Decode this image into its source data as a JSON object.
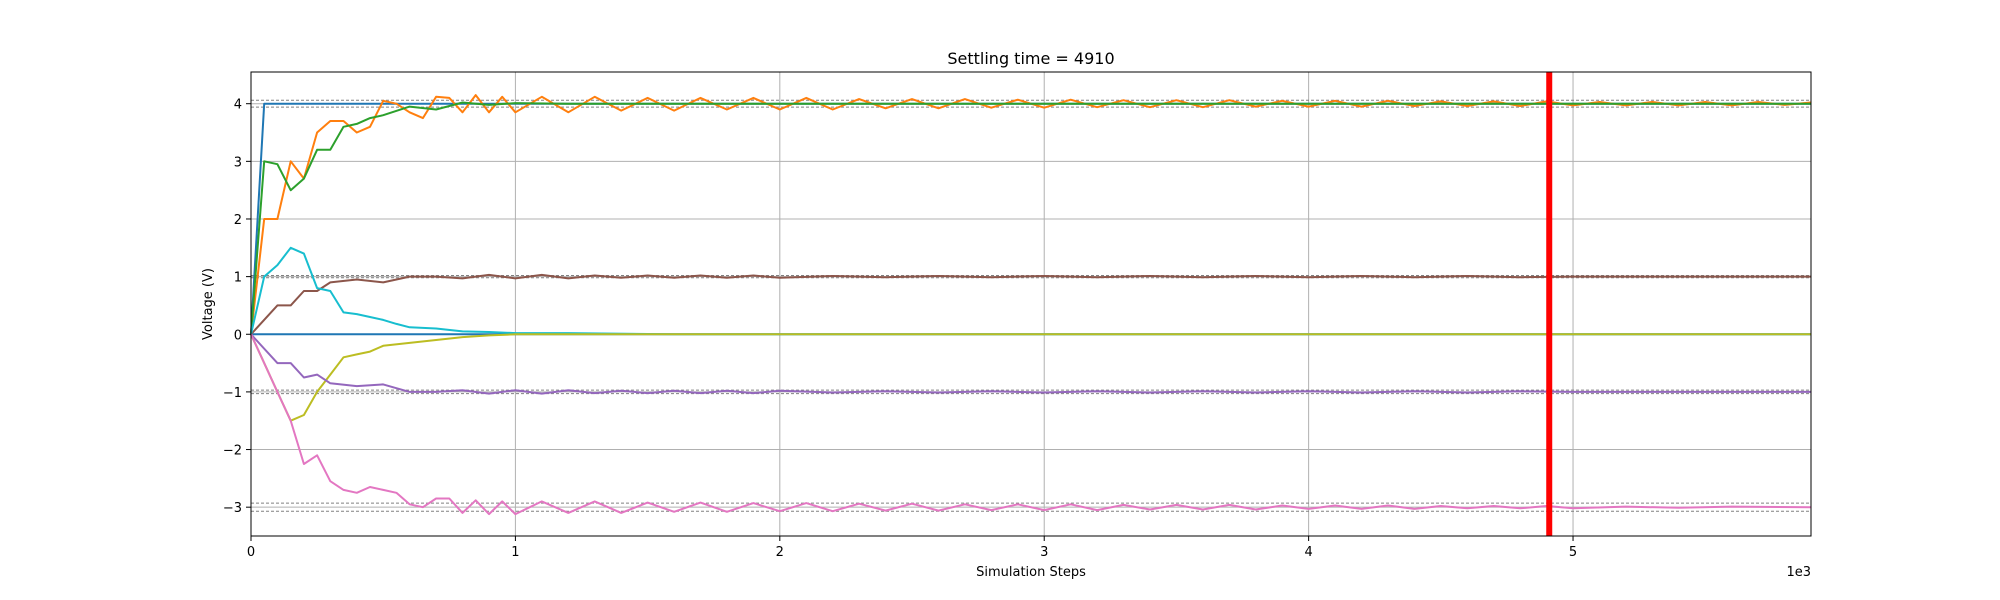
{
  "chart_data": {
    "type": "line",
    "title": "Settling time = 4910",
    "xlabel": "Simulation Steps",
    "ylabel": "Voltage (V)",
    "x_offset_label": "1e3",
    "xlim": [
      0,
      5900
    ],
    "ylim": [
      -3.5,
      4.55
    ],
    "grid": true,
    "x_ticks": [
      0,
      1000,
      2000,
      3000,
      4000,
      5000
    ],
    "x_tick_labels": [
      "0",
      "1",
      "2",
      "3",
      "4",
      "5"
    ],
    "y_ticks": [
      -3,
      -2,
      -1,
      0,
      1,
      2,
      3,
      4
    ],
    "y_tick_labels": [
      "−3",
      "−2",
      "−1",
      "0",
      "1",
      "2",
      "3",
      "4"
    ],
    "settling_time": 4910,
    "settling_marker_color": "#ff0000",
    "tolerance_bands": [
      {
        "center": 4,
        "half_width": 0.06
      },
      {
        "center": 1,
        "half_width": 0.02
      },
      {
        "center": -1,
        "half_width": 0.03
      },
      {
        "center": -3,
        "half_width": 0.07
      }
    ],
    "series": [
      {
        "color": "#1f77b4",
        "points": [
          [
            0,
            0
          ],
          [
            50,
            4
          ],
          [
            5900,
            4
          ]
        ]
      },
      {
        "color": "#1f77b4",
        "points": [
          [
            0,
            0
          ],
          [
            5900,
            0
          ]
        ]
      },
      {
        "color": "#ff7f0e",
        "points": [
          [
            0,
            0
          ],
          [
            50,
            2
          ],
          [
            100,
            2
          ],
          [
            150,
            3
          ],
          [
            200,
            2.7
          ],
          [
            250,
            3.5
          ],
          [
            300,
            3.7
          ],
          [
            350,
            3.7
          ],
          [
            400,
            3.5
          ],
          [
            450,
            3.6
          ],
          [
            500,
            4.05
          ],
          [
            550,
            4.0
          ],
          [
            600,
            3.85
          ],
          [
            650,
            3.75
          ],
          [
            700,
            4.12
          ],
          [
            750,
            4.1
          ],
          [
            800,
            3.85
          ],
          [
            850,
            4.15
          ],
          [
            900,
            3.85
          ],
          [
            950,
            4.12
          ],
          [
            1000,
            3.85
          ],
          [
            1100,
            4.12
          ],
          [
            1200,
            3.85
          ],
          [
            1300,
            4.12
          ],
          [
            1400,
            3.88
          ],
          [
            1500,
            4.1
          ],
          [
            1600,
            3.88
          ],
          [
            1700,
            4.1
          ],
          [
            1800,
            3.9
          ],
          [
            1900,
            4.1
          ],
          [
            2000,
            3.9
          ],
          [
            2100,
            4.1
          ],
          [
            2200,
            3.9
          ],
          [
            2300,
            4.08
          ],
          [
            2400,
            3.92
          ],
          [
            2500,
            4.08
          ],
          [
            2600,
            3.92
          ],
          [
            2700,
            4.08
          ],
          [
            2800,
            3.93
          ],
          [
            2900,
            4.07
          ],
          [
            3000,
            3.93
          ],
          [
            3100,
            4.07
          ],
          [
            3200,
            3.94
          ],
          [
            3300,
            4.06
          ],
          [
            3400,
            3.94
          ],
          [
            3500,
            4.06
          ],
          [
            3600,
            3.94
          ],
          [
            3700,
            4.06
          ],
          [
            3800,
            3.95
          ],
          [
            3900,
            4.05
          ],
          [
            4000,
            3.95
          ],
          [
            4100,
            4.05
          ],
          [
            4200,
            3.95
          ],
          [
            4300,
            4.05
          ],
          [
            4400,
            3.96
          ],
          [
            4500,
            4.04
          ],
          [
            4600,
            3.96
          ],
          [
            4700,
            4.04
          ],
          [
            4800,
            3.96
          ],
          [
            4900,
            4.04
          ],
          [
            5000,
            3.97
          ],
          [
            5100,
            4.03
          ],
          [
            5200,
            3.97
          ],
          [
            5300,
            4.03
          ],
          [
            5400,
            3.97
          ],
          [
            5500,
            4.03
          ],
          [
            5600,
            3.97
          ],
          [
            5700,
            4.03
          ],
          [
            5800,
            3.98
          ],
          [
            5900,
            4.02
          ]
        ]
      },
      {
        "color": "#2ca02c",
        "points": [
          [
            0,
            0
          ],
          [
            50,
            3
          ],
          [
            100,
            2.95
          ],
          [
            150,
            2.5
          ],
          [
            200,
            2.7
          ],
          [
            250,
            3.2
          ],
          [
            300,
            3.2
          ],
          [
            350,
            3.6
          ],
          [
            400,
            3.65
          ],
          [
            450,
            3.75
          ],
          [
            500,
            3.8
          ],
          [
            600,
            3.95
          ],
          [
            700,
            3.9
          ],
          [
            800,
            4.02
          ],
          [
            900,
            3.98
          ],
          [
            1000,
            4.01
          ],
          [
            1200,
            4.0
          ],
          [
            5900,
            4.0
          ]
        ]
      },
      {
        "color": "#8c564b",
        "points": [
          [
            0,
            0
          ],
          [
            100,
            0.5
          ],
          [
            150,
            0.5
          ],
          [
            200,
            0.75
          ],
          [
            250,
            0.75
          ],
          [
            300,
            0.9
          ],
          [
            400,
            0.95
          ],
          [
            500,
            0.9
          ],
          [
            600,
            1.0
          ],
          [
            700,
            1.0
          ],
          [
            800,
            0.97
          ],
          [
            900,
            1.03
          ],
          [
            1000,
            0.97
          ],
          [
            1100,
            1.03
          ],
          [
            1200,
            0.97
          ],
          [
            1300,
            1.02
          ],
          [
            1400,
            0.98
          ],
          [
            1500,
            1.02
          ],
          [
            1600,
            0.98
          ],
          [
            1700,
            1.02
          ],
          [
            1800,
            0.98
          ],
          [
            1900,
            1.02
          ],
          [
            2000,
            0.98
          ],
          [
            2200,
            1.01
          ],
          [
            2400,
            0.99
          ],
          [
            2600,
            1.01
          ],
          [
            2800,
            0.99
          ],
          [
            3000,
            1.01
          ],
          [
            3200,
            0.99
          ],
          [
            3400,
            1.01
          ],
          [
            3600,
            0.99
          ],
          [
            3800,
            1.01
          ],
          [
            4000,
            0.99
          ],
          [
            4200,
            1.01
          ],
          [
            4400,
            0.99
          ],
          [
            4600,
            1.01
          ],
          [
            4800,
            0.99
          ],
          [
            5000,
            1.0
          ],
          [
            5900,
            1.0
          ]
        ]
      },
      {
        "color": "#17becf",
        "points": [
          [
            0,
            0
          ],
          [
            50,
            1
          ],
          [
            100,
            1.2
          ],
          [
            150,
            1.5
          ],
          [
            200,
            1.4
          ],
          [
            250,
            0.8
          ],
          [
            300,
            0.75
          ],
          [
            350,
            0.38
          ],
          [
            400,
            0.35
          ],
          [
            450,
            0.3
          ],
          [
            500,
            0.25
          ],
          [
            550,
            0.18
          ],
          [
            600,
            0.12
          ],
          [
            700,
            0.1
          ],
          [
            800,
            0.05
          ],
          [
            900,
            0.04
          ],
          [
            1000,
            0.02
          ],
          [
            1200,
            0.02
          ],
          [
            1600,
            0.0
          ],
          [
            5900,
            0.0
          ]
        ]
      },
      {
        "color": "#bcbd22",
        "points": [
          [
            0,
            0
          ],
          [
            50,
            -0.5
          ],
          [
            100,
            -1.0
          ],
          [
            150,
            -1.5
          ],
          [
            200,
            -1.4
          ],
          [
            250,
            -1.0
          ],
          [
            300,
            -0.7
          ],
          [
            350,
            -0.4
          ],
          [
            400,
            -0.35
          ],
          [
            450,
            -0.3
          ],
          [
            500,
            -0.2
          ],
          [
            600,
            -0.15
          ],
          [
            700,
            -0.1
          ],
          [
            800,
            -0.05
          ],
          [
            900,
            -0.02
          ],
          [
            1000,
            0.0
          ],
          [
            5900,
            0.0
          ]
        ]
      },
      {
        "color": "#9467bd",
        "points": [
          [
            0,
            0
          ],
          [
            100,
            -0.5
          ],
          [
            150,
            -0.5
          ],
          [
            200,
            -0.75
          ],
          [
            250,
            -0.7
          ],
          [
            300,
            -0.85
          ],
          [
            400,
            -0.9
          ],
          [
            500,
            -0.87
          ],
          [
            600,
            -1.0
          ],
          [
            700,
            -1.0
          ],
          [
            800,
            -0.97
          ],
          [
            900,
            -1.03
          ],
          [
            1000,
            -0.97
          ],
          [
            1100,
            -1.03
          ],
          [
            1200,
            -0.97
          ],
          [
            1300,
            -1.02
          ],
          [
            1400,
            -0.98
          ],
          [
            1500,
            -1.02
          ],
          [
            1600,
            -0.98
          ],
          [
            1700,
            -1.02
          ],
          [
            1800,
            -0.98
          ],
          [
            1900,
            -1.02
          ],
          [
            2000,
            -0.98
          ],
          [
            2200,
            -1.01
          ],
          [
            2400,
            -0.99
          ],
          [
            2600,
            -1.01
          ],
          [
            2800,
            -0.99
          ],
          [
            3000,
            -1.01
          ],
          [
            3200,
            -0.99
          ],
          [
            3400,
            -1.01
          ],
          [
            3600,
            -0.99
          ],
          [
            3800,
            -1.01
          ],
          [
            4000,
            -0.99
          ],
          [
            4200,
            -1.01
          ],
          [
            4400,
            -0.99
          ],
          [
            4600,
            -1.01
          ],
          [
            4800,
            -0.99
          ],
          [
            5000,
            -1.0
          ],
          [
            5900,
            -1.0
          ]
        ]
      },
      {
        "color": "#e377c2",
        "points": [
          [
            0,
            0
          ],
          [
            50,
            -0.5
          ],
          [
            100,
            -1.0
          ],
          [
            150,
            -1.5
          ],
          [
            200,
            -2.25
          ],
          [
            250,
            -2.1
          ],
          [
            300,
            -2.55
          ],
          [
            350,
            -2.7
          ],
          [
            400,
            -2.75
          ],
          [
            450,
            -2.65
          ],
          [
            500,
            -2.7
          ],
          [
            550,
            -2.75
          ],
          [
            600,
            -2.95
          ],
          [
            650,
            -3.0
          ],
          [
            700,
            -2.85
          ],
          [
            750,
            -2.85
          ],
          [
            800,
            -3.1
          ],
          [
            850,
            -2.88
          ],
          [
            900,
            -3.12
          ],
          [
            950,
            -2.9
          ],
          [
            1000,
            -3.12
          ],
          [
            1100,
            -2.9
          ],
          [
            1200,
            -3.1
          ],
          [
            1300,
            -2.9
          ],
          [
            1400,
            -3.1
          ],
          [
            1500,
            -2.92
          ],
          [
            1600,
            -3.08
          ],
          [
            1700,
            -2.92
          ],
          [
            1800,
            -3.08
          ],
          [
            1900,
            -2.93
          ],
          [
            2000,
            -3.07
          ],
          [
            2100,
            -2.93
          ],
          [
            2200,
            -3.07
          ],
          [
            2300,
            -2.94
          ],
          [
            2400,
            -3.06
          ],
          [
            2500,
            -2.94
          ],
          [
            2600,
            -3.06
          ],
          [
            2700,
            -2.95
          ],
          [
            2800,
            -3.05
          ],
          [
            2900,
            -2.95
          ],
          [
            3000,
            -3.05
          ],
          [
            3100,
            -2.95
          ],
          [
            3200,
            -3.05
          ],
          [
            3300,
            -2.96
          ],
          [
            3400,
            -3.04
          ],
          [
            3500,
            -2.96
          ],
          [
            3600,
            -3.04
          ],
          [
            3700,
            -2.96
          ],
          [
            3800,
            -3.04
          ],
          [
            3900,
            -2.97
          ],
          [
            4000,
            -3.03
          ],
          [
            4100,
            -2.97
          ],
          [
            4200,
            -3.03
          ],
          [
            4300,
            -2.97
          ],
          [
            4400,
            -3.03
          ],
          [
            4500,
            -2.98
          ],
          [
            4600,
            -3.02
          ],
          [
            4700,
            -2.98
          ],
          [
            4800,
            -3.02
          ],
          [
            4900,
            -2.98
          ],
          [
            5000,
            -3.02
          ],
          [
            5200,
            -2.99
          ],
          [
            5400,
            -3.01
          ],
          [
            5600,
            -2.99
          ],
          [
            5900,
            -3.0
          ]
        ]
      }
    ]
  }
}
